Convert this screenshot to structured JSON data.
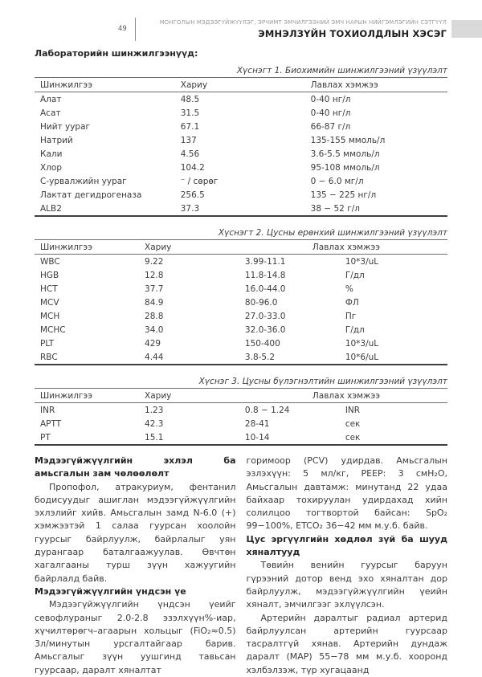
{
  "header": {
    "page_number": "49",
    "journal_title": "МОНГОЛЫН МЭДЭЭГҮЙЖҮҮЛЭГ, ЭРЧИМТ ЭМЧИЛГЭЭНИЙ ЭМЧ НАРЫН НИЙГЭМЛЭГИЙН СЭТГҮҮЛ",
    "section_title": "ЭМНЭЛЗҮЙН ТОХИОЛДЛЫН ХЭСЭГ",
    "accent_bar_color": "#d9d9d9"
  },
  "intro_heading": "Лабораторийн шинжилгээнүүд:",
  "tables": [
    {
      "caption": "Хүснэгт 1. Биохимийн шинжилгээний үзүүлэлт",
      "header": [
        "Шинжилгээ",
        "Хариу",
        "Лавлах хэмжээ"
      ],
      "rows": [
        [
          "Алат",
          "48.5",
          "0-40 нг/л"
        ],
        [
          "Асат",
          "31.5",
          "0-40 нг/л"
        ],
        [
          "Нийт уураг",
          "67.1",
          "66-87 г/л"
        ],
        [
          "Натрий",
          "137",
          "135-155 ммоль/л"
        ],
        [
          "Кали",
          "4.56",
          "3.6-5.5 ммоль/л"
        ],
        [
          "Хлор",
          "104.2",
          "95-108 ммоль/л"
        ],
        [
          "С-урвалжийн уураг",
          "⁻ / сөрөг",
          "0 − 6.0 мг/л"
        ],
        [
          "Лактат дегидрогеназа",
          "256.5",
          "135 − 225 нг/л"
        ],
        [
          "ALB2",
          "37.3",
          "38 − 52 г/л"
        ]
      ]
    },
    {
      "caption": "Хүснэгт 2. Цусны ерөнхий шинжилгээний үзүүлэлт",
      "header": [
        "Шинжилгээ",
        "Хариу",
        "Лавлах хэмжээ"
      ],
      "rows": [
        [
          "WBC",
          "9.22",
          "3.99-11.1",
          "10*3/uL"
        ],
        [
          "HGB",
          "12.8",
          "11.8-14.8",
          "Г/дл"
        ],
        [
          "HCT",
          "37.7",
          "16.0-44.0",
          "%"
        ],
        [
          "MCV",
          "84.9",
          "80-96.0",
          "ФЛ"
        ],
        [
          "MCH",
          "28.8",
          "27.0-33.0",
          "Пг"
        ],
        [
          "MCHC",
          "34.0",
          "32.0-36.0",
          "Г/дл"
        ],
        [
          "PLT",
          "429",
          "150-400",
          "10*3/uL"
        ],
        [
          "RBC",
          "4.44",
          "3.8-5.2",
          "10*6/uL"
        ]
      ]
    },
    {
      "caption": "Хүснэг 3. Цусны бүлэгнэлтийн шинжилгээний үзүүлэлт",
      "header": [
        "Шинжилгээ",
        "Хариу",
        "Лавлах хэмжээ"
      ],
      "rows": [
        [
          "INR",
          "1.23",
          "0.8 − 1.24",
          "INR"
        ],
        [
          "APTT",
          "42.3",
          "28-41",
          "сек"
        ],
        [
          "PT",
          "15.1",
          "10-14",
          "сек"
        ]
      ]
    }
  ],
  "article": {
    "left": [
      {
        "type": "heading",
        "text": "Мэдээгүйжүүлгийн эхлэл ба амьсгалын зам чөлөөлөлт"
      },
      {
        "type": "para",
        "text": "Пропофол, атракуриум, фентанил бодисуудыг ашиглан мэдээгүйжүүлгийн эхлэлийг хийв. Амьсгалын замд N-6.0 (+) хэмжээтэй 1 салаа гуурсан хоолойн гуурсыг байрлуулж, байрлалыг уян дурангаар баталгаажуулав. Өвчтөн хагалгааны турш зүүн хажуугийн байрлалд байв."
      },
      {
        "type": "heading",
        "text": "Мэдээгүйжүүлгийн үндсэн үе"
      },
      {
        "type": "para",
        "text": "Мэдээгүйжүүлгийн үндсэн үеийг севофлураныг 2.0-2.8 эзэлхүүн%-иар, хүчилтөрөгч–агаарын хольцыг (FiO₂≈0.5) 3л/минутын урсгалтайгаар барив. Амьсгалыг зүүн уушгинд тавьсан гуурсаар, даралт хяналтат"
      }
    ],
    "right": [
      {
        "type": "para-noindent",
        "text": "горимоор (PCV) удирдав. Амьсгалын эзлэхүүн: 5 мл/кг, PEEP: 3 смH₂O, Амьсгалын давтамж: минутанд 22 удаа байхаар тохируулан удирдахад хийн солилцоо тогтвортой байсан: SpO₂ 99−100%, ETCO₂ 36−42 мм м.у.б. байв."
      },
      {
        "type": "heading",
        "text": "Цус эргүүлгийн хөдлөл зүй ба шууд хяналтууд"
      },
      {
        "type": "para",
        "text": "Төвийн венийн гуурсыг баруун гүрээний дотор венд эхо хяналтан дор байрлуулж, мэдээгүйжүүлгийн үеийн хяналт, эмчилгээг эхлүүлсэн."
      },
      {
        "type": "para",
        "text": "Артерийн даралтыг радиал артерид байрлуулсан артерийн гуурсаар тасралтгүй хянав. Артерийн дундаж даралт (MAP) 55−78 мм м.у.б. хооронд хэлбэлзэж, түр хугацаанд"
      }
    ]
  }
}
